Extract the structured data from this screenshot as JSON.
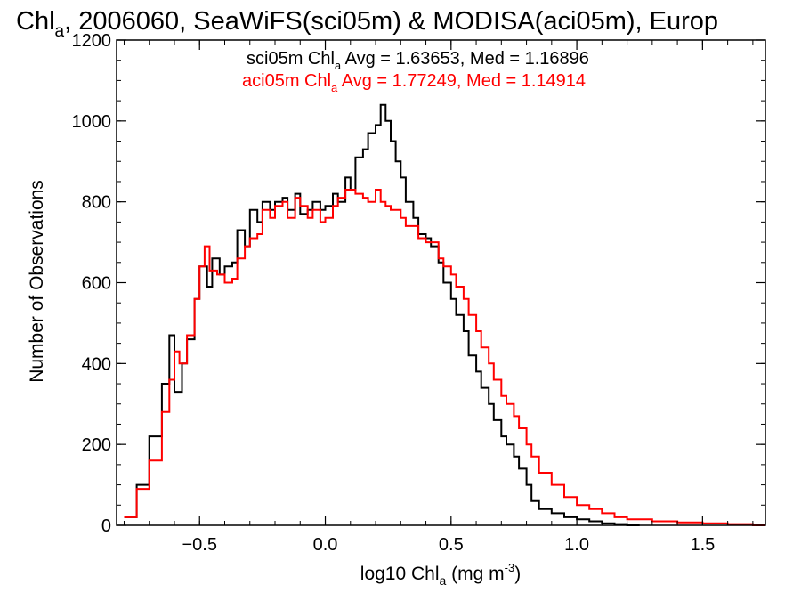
{
  "chart_data": {
    "type": "line",
    "title": {
      "pre": "Chl",
      "sub": "a",
      "post": ", 2006060, SeaWiFS(sci05m) & MODISA(aci05m), Europ"
    },
    "xlabel": {
      "pre": "log10 Chl",
      "sub": "a",
      "mid": " (mg m",
      "sup": "-3",
      "post": ")"
    },
    "ylabel": "Number of Observations",
    "xlim": [
      -0.83,
      1.75
    ],
    "ylim": [
      0,
      1200
    ],
    "xticks": [
      -0.5,
      0.0,
      0.5,
      1.0,
      1.5
    ],
    "xtick_labels": [
      "−0.5",
      "0.0",
      "0.5",
      "1.0",
      "1.5"
    ],
    "yticks": [
      0,
      200,
      400,
      600,
      800,
      1000,
      1200
    ],
    "ytick_labels": [
      "0",
      "200",
      "400",
      "600",
      "800",
      "1000",
      "1200"
    ],
    "grid": false,
    "legend_position": "top-center",
    "series": [
      {
        "id": "sci05m",
        "color": "#000000",
        "label": {
          "pre": "sci05m Chl",
          "sub": "a",
          "post": " Avg = 1.63653, Med = 1.16896"
        },
        "x": [
          -0.8,
          -0.75,
          -0.7,
          -0.65,
          -0.62,
          -0.6,
          -0.57,
          -0.55,
          -0.52,
          -0.5,
          -0.47,
          -0.45,
          -0.42,
          -0.4,
          -0.37,
          -0.35,
          -0.32,
          -0.3,
          -0.27,
          -0.25,
          -0.22,
          -0.2,
          -0.17,
          -0.15,
          -0.12,
          -0.1,
          -0.07,
          -0.05,
          -0.02,
          0.0,
          0.03,
          0.05,
          0.08,
          0.1,
          0.12,
          0.15,
          0.17,
          0.2,
          0.22,
          0.24,
          0.26,
          0.28,
          0.3,
          0.32,
          0.35,
          0.37,
          0.4,
          0.42,
          0.45,
          0.47,
          0.5,
          0.52,
          0.55,
          0.57,
          0.6,
          0.62,
          0.65,
          0.67,
          0.7,
          0.72,
          0.75,
          0.77,
          0.8,
          0.82,
          0.85,
          0.9,
          0.95,
          1.0,
          1.05,
          1.1,
          1.15,
          1.2
        ],
        "y": [
          20,
          100,
          220,
          350,
          470,
          330,
          400,
          460,
          560,
          640,
          590,
          660,
          620,
          640,
          650,
          730,
          690,
          780,
          750,
          800,
          780,
          800,
          810,
          780,
          820,
          770,
          780,
          800,
          780,
          790,
          820,
          800,
          860,
          830,
          910,
          930,
          970,
          990,
          1040,
          1000,
          950,
          900,
          860,
          800,
          760,
          720,
          710,
          690,
          650,
          600,
          560,
          520,
          480,
          420,
          380,
          340,
          300,
          260,
          220,
          200,
          170,
          140,
          100,
          60,
          40,
          30,
          20,
          15,
          10,
          5,
          3,
          0
        ]
      },
      {
        "id": "aci05m",
        "color": "#ff0000",
        "label": {
          "pre": "aci05m Chl",
          "sub": "a",
          "post": " Avg = 1.77249, Med = 1.14914"
        },
        "x": [
          -0.8,
          -0.75,
          -0.7,
          -0.65,
          -0.62,
          -0.6,
          -0.58,
          -0.55,
          -0.52,
          -0.5,
          -0.48,
          -0.46,
          -0.43,
          -0.4,
          -0.37,
          -0.35,
          -0.32,
          -0.3,
          -0.27,
          -0.25,
          -0.22,
          -0.2,
          -0.17,
          -0.15,
          -0.12,
          -0.1,
          -0.07,
          -0.05,
          -0.02,
          0.0,
          0.03,
          0.05,
          0.08,
          0.1,
          0.12,
          0.15,
          0.17,
          0.2,
          0.22,
          0.24,
          0.26,
          0.28,
          0.3,
          0.32,
          0.35,
          0.37,
          0.4,
          0.42,
          0.45,
          0.47,
          0.5,
          0.52,
          0.55,
          0.57,
          0.6,
          0.62,
          0.65,
          0.67,
          0.7,
          0.72,
          0.75,
          0.77,
          0.8,
          0.82,
          0.85,
          0.9,
          0.95,
          1.0,
          1.05,
          1.1,
          1.15,
          1.2,
          1.3,
          1.4,
          1.5,
          1.6,
          1.7
        ],
        "y": [
          20,
          90,
          160,
          280,
          360,
          430,
          400,
          470,
          560,
          640,
          690,
          630,
          620,
          600,
          610,
          660,
          690,
          710,
          720,
          780,
          760,
          790,
          800,
          760,
          810,
          790,
          760,
          780,
          750,
          760,
          790,
          810,
          830,
          830,
          820,
          810,
          800,
          830,
          800,
          790,
          780,
          780,
          760,
          740,
          740,
          710,
          700,
          700,
          660,
          640,
          620,
          590,
          560,
          520,
          480,
          440,
          400,
          360,
          320,
          300,
          270,
          240,
          200,
          170,
          130,
          100,
          70,
          50,
          40,
          30,
          20,
          15,
          10,
          7,
          5,
          3,
          0
        ]
      }
    ]
  }
}
